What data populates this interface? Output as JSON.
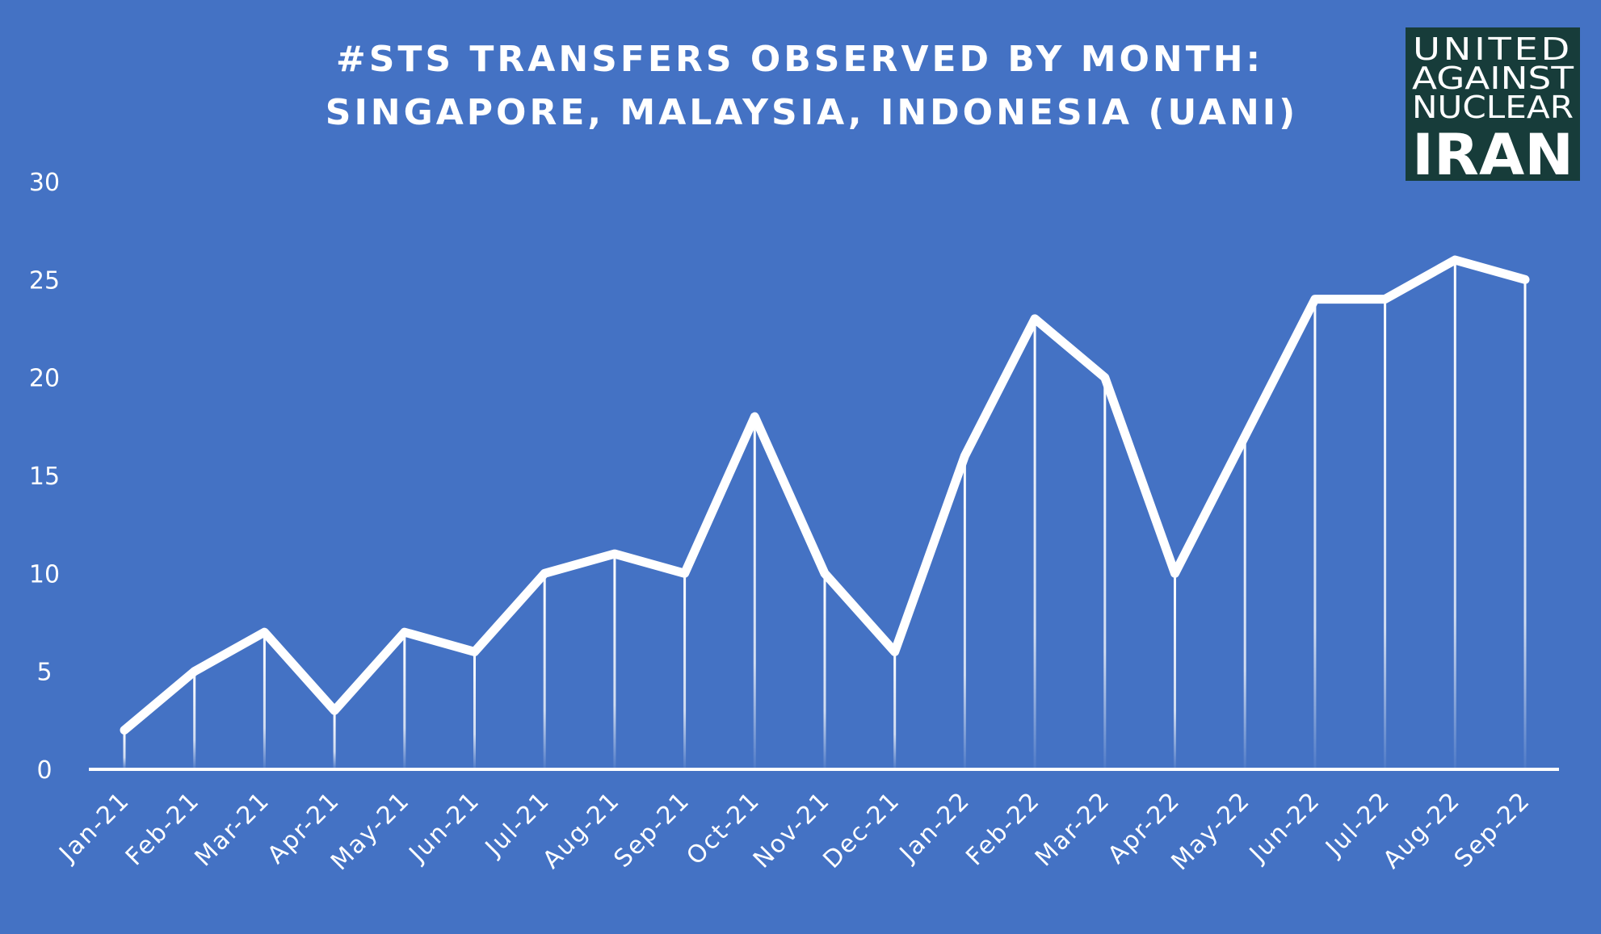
{
  "chart_data": {
    "type": "line",
    "title_line1": "#STS TRANSFERS OBSERVED BY MONTH:",
    "title_line2": "SINGAPORE, MALAYSIA, INDONESIA (UANI)",
    "xlabel": "",
    "ylabel": "",
    "ylim": [
      0,
      30
    ],
    "yticks": [
      0,
      5,
      10,
      15,
      20,
      25,
      30
    ],
    "grid": false,
    "legend": "none",
    "categories": [
      "Jan-21",
      "Feb-21",
      "Mar-21",
      "Apr-21",
      "May-21",
      "Jun-21",
      "Jul-21",
      "Aug-21",
      "Sep-21",
      "Oct-21",
      "Nov-21",
      "Dec-21",
      "Jan-22",
      "Feb-22",
      "Mar-22",
      "Apr-22",
      "May-22",
      "Jun-22",
      "Jul-22",
      "Aug-22",
      "Sep-22"
    ],
    "series": [
      {
        "values": [
          2,
          5,
          7,
          3,
          7,
          6,
          10,
          11,
          10,
          18,
          10,
          6,
          16,
          23,
          20,
          10,
          17,
          24,
          24,
          26,
          25
        ]
      }
    ]
  },
  "logo": {
    "line1": "UNITED",
    "line2": "AGAINST",
    "line3": "NUCLEAR",
    "line4": "IRAN"
  },
  "colors": {
    "background": "#4472C4",
    "line": "#FFFFFF",
    "logo_bg": "#173C3A"
  }
}
